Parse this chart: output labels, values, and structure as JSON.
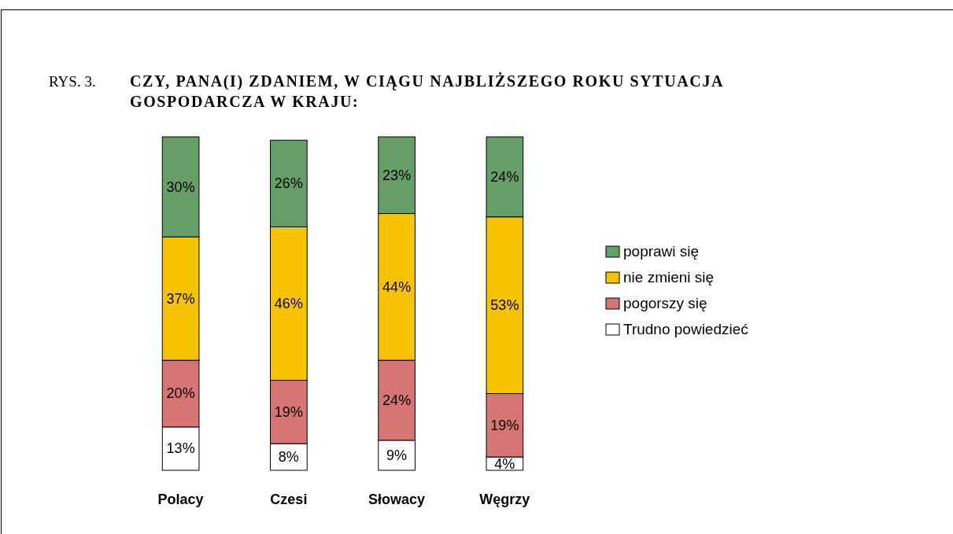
{
  "chart_data": {
    "type": "bar",
    "stacked": true,
    "title": "CZY, PANA(I) ZDANIEM, W CIĄGU NAJBLIŻSZEGO ROKU SYTUACJA GOSPODARCZA W KRAJU:",
    "annotations": [
      "RYS. 3."
    ],
    "categories": [
      "Polacy",
      "Czesi",
      "Słowacy",
      "Węgrzy"
    ],
    "series": [
      {
        "name": "Trudno powiedzieć",
        "color": "#ffffff",
        "values": [
          13,
          8,
          9,
          4
        ],
        "value_labels": [
          "13%",
          "8%",
          "9%",
          "4%"
        ]
      },
      {
        "name": "pogorszy się",
        "color": "#d77474",
        "values": [
          20,
          19,
          24,
          19
        ],
        "value_labels": [
          "20%",
          "19%",
          "24%",
          "19%"
        ]
      },
      {
        "name": "nie zmieni się",
        "color": "#f7c300",
        "values": [
          37,
          46,
          44,
          53
        ],
        "value_labels": [
          "37%",
          "46%",
          "44%",
          "53%"
        ]
      },
      {
        "name": "poprawi się",
        "color": "#659f67",
        "values": [
          30,
          26,
          23,
          24
        ],
        "value_labels": [
          "30%",
          "26%",
          "23%",
          "24%"
        ]
      }
    ],
    "legend": "right"
  }
}
